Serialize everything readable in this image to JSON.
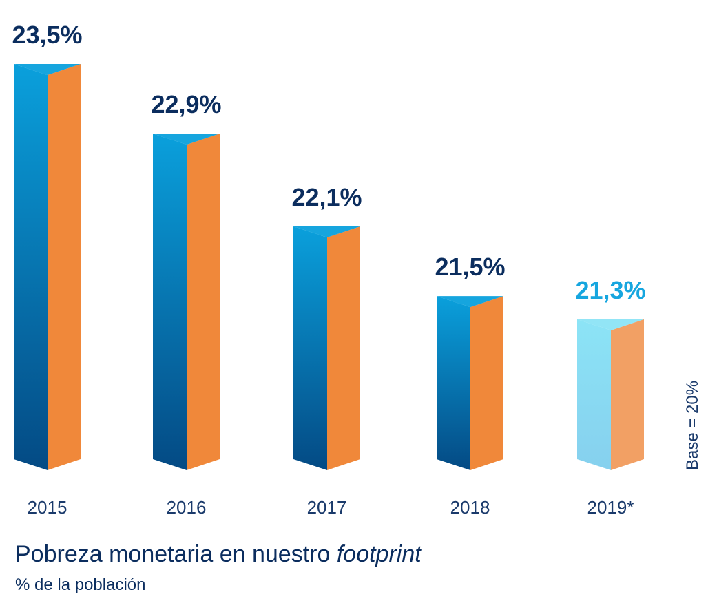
{
  "chart_data": {
    "type": "bar",
    "title": "Pobreza monetaria en nuestro",
    "title_italic": "footprint",
    "subtitle": "% de la población",
    "categories": [
      "2015",
      "2016",
      "2017",
      "2018",
      "2019*"
    ],
    "values": [
      23.5,
      22.9,
      22.1,
      21.5,
      21.3
    ],
    "value_labels": [
      "23,5%",
      "22,9%",
      "22,1%",
      "21,5%",
      "21,3%"
    ],
    "highlighted": [
      false,
      false,
      false,
      false,
      true
    ],
    "ylim": [
      20,
      23.5
    ],
    "base_note": "Base = 20%",
    "grid": false,
    "colors": {
      "front_top": "#0aa0dc",
      "front_bottom": "#044a84",
      "side": "#f0883a",
      "label": "#0b2d5e",
      "estimate_front_top": "#8ce4f6",
      "estimate_front_bottom": "#86d0ee",
      "estimate_side": "#f2a064",
      "estimate_label": "#16a6df"
    }
  }
}
